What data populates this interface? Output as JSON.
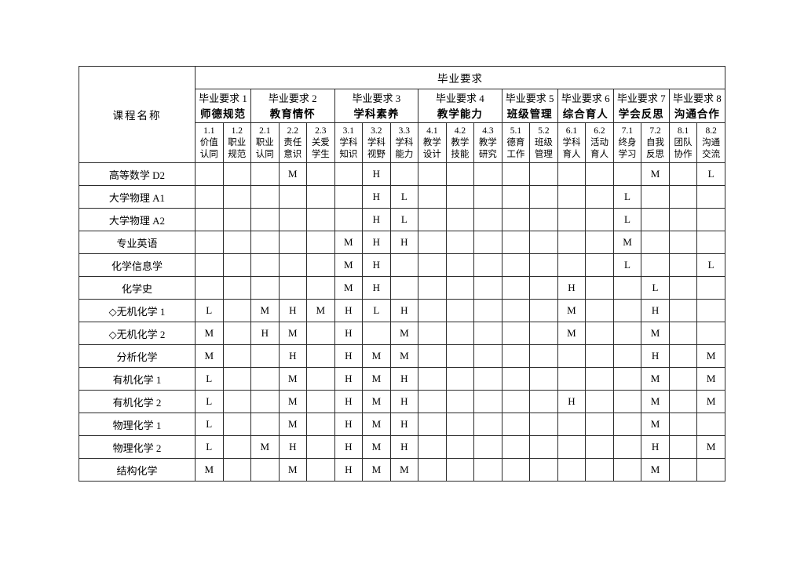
{
  "table": {
    "course_col_header": "课程名称",
    "top_header": "毕业要求",
    "groups": [
      {
        "title": "毕业要求 1",
        "name": "师德规范",
        "cols": 2
      },
      {
        "title": "毕业要求 2",
        "name": "教育情怀",
        "cols": 3
      },
      {
        "title": "毕业要求 3",
        "name": "学科素养",
        "cols": 3
      },
      {
        "title": "毕业要求 4",
        "name": "教学能力",
        "cols": 3
      },
      {
        "title": "毕业要求 5",
        "name": "班级管理",
        "cols": 2
      },
      {
        "title": "毕业要求 6",
        "name": "综合育人",
        "cols": 2
      },
      {
        "title": "毕业要求 7",
        "name": "学会反思",
        "cols": 2
      },
      {
        "title": "毕业要求 8",
        "name": "沟通合作",
        "cols": 2
      }
    ],
    "subcols": [
      "1.1\n价值\n认同",
      "1.2\n职业\n规范",
      "2.1\n职业\n认同",
      "2.2\n责任\n意识",
      "2.3\n关爱\n学生",
      "3.1\n学科\n知识",
      "3.2\n学科\n视野",
      "3.3\n学科\n能力",
      "4.1\n教学\n设计",
      "4.2\n教学\n技能",
      "4.3\n教学\n研究",
      "5.1\n德育\n工作",
      "5.2\n班级\n管理",
      "6.1\n学科\n育人",
      "6.2\n活动\n育人",
      "7.1\n终身\n学习",
      "7.2\n自我\n反思",
      "8.1\n团队\n协作",
      "8.2\n沟通\n交流"
    ],
    "rows": [
      {
        "course": "高等数学 D2",
        "values": [
          "",
          "",
          "",
          "M",
          "",
          "",
          "H",
          "",
          "",
          "",
          "",
          "",
          "",
          "",
          "",
          "",
          "M",
          "",
          "L"
        ]
      },
      {
        "course": "大学物理 A1",
        "values": [
          "",
          "",
          "",
          "",
          "",
          "",
          "H",
          "L",
          "",
          "",
          "",
          "",
          "",
          "",
          "",
          "L",
          "",
          "",
          ""
        ]
      },
      {
        "course": "大学物理 A2",
        "values": [
          "",
          "",
          "",
          "",
          "",
          "",
          "H",
          "L",
          "",
          "",
          "",
          "",
          "",
          "",
          "",
          "L",
          "",
          "",
          ""
        ]
      },
      {
        "course": "专业英语",
        "values": [
          "",
          "",
          "",
          "",
          "",
          "M",
          "H",
          "H",
          "",
          "",
          "",
          "",
          "",
          "",
          "",
          "M",
          "",
          "",
          ""
        ]
      },
      {
        "course": "化学信息学",
        "values": [
          "",
          "",
          "",
          "",
          "",
          "M",
          "H",
          "",
          "",
          "",
          "",
          "",
          "",
          "",
          "",
          "L",
          "",
          "",
          "L"
        ]
      },
      {
        "course": "化学史",
        "values": [
          "",
          "",
          "",
          "",
          "",
          "M",
          "H",
          "",
          "",
          "",
          "",
          "",
          "",
          "H",
          "",
          "",
          "L",
          "",
          ""
        ]
      },
      {
        "course": "◇无机化学 1",
        "values": [
          "L",
          "",
          "M",
          "H",
          "M",
          "H",
          "L",
          "H",
          "",
          "",
          "",
          "",
          "",
          "M",
          "",
          "",
          "H",
          "",
          ""
        ]
      },
      {
        "course": "◇无机化学 2",
        "values": [
          "M",
          "",
          "H",
          "M",
          "",
          "H",
          "",
          "M",
          "",
          "",
          "",
          "",
          "",
          "M",
          "",
          "",
          "M",
          "",
          ""
        ]
      },
      {
        "course": "分析化学",
        "values": [
          "M",
          "",
          "",
          "H",
          "",
          "H",
          "M",
          "M",
          "",
          "",
          "",
          "",
          "",
          "",
          "",
          "",
          "H",
          "",
          "M"
        ]
      },
      {
        "course": "有机化学 1",
        "values": [
          "L",
          "",
          "",
          "M",
          "",
          "H",
          "M",
          "H",
          "",
          "",
          "",
          "",
          "",
          "",
          "",
          "",
          "M",
          "",
          "M"
        ]
      },
      {
        "course": "有机化学 2",
        "values": [
          "L",
          "",
          "",
          "M",
          "",
          "H",
          "M",
          "H",
          "",
          "",
          "",
          "",
          "",
          "H",
          "",
          "",
          "M",
          "",
          "M"
        ]
      },
      {
        "course": "物理化学 1",
        "values": [
          "L",
          "",
          "",
          "M",
          "",
          "H",
          "M",
          "H",
          "",
          "",
          "",
          "",
          "",
          "",
          "",
          "",
          "M",
          "",
          ""
        ]
      },
      {
        "course": "物理化学 2",
        "values": [
          "L",
          "",
          "M",
          "H",
          "",
          "H",
          "M",
          "H",
          "",
          "",
          "",
          "",
          "",
          "",
          "",
          "",
          "H",
          "",
          "M"
        ]
      },
      {
        "course": "结构化学",
        "values": [
          "M",
          "",
          "",
          "M",
          "",
          "H",
          "M",
          "M",
          "",
          "",
          "",
          "",
          "",
          "",
          "",
          "",
          "M",
          "",
          ""
        ]
      }
    ]
  }
}
